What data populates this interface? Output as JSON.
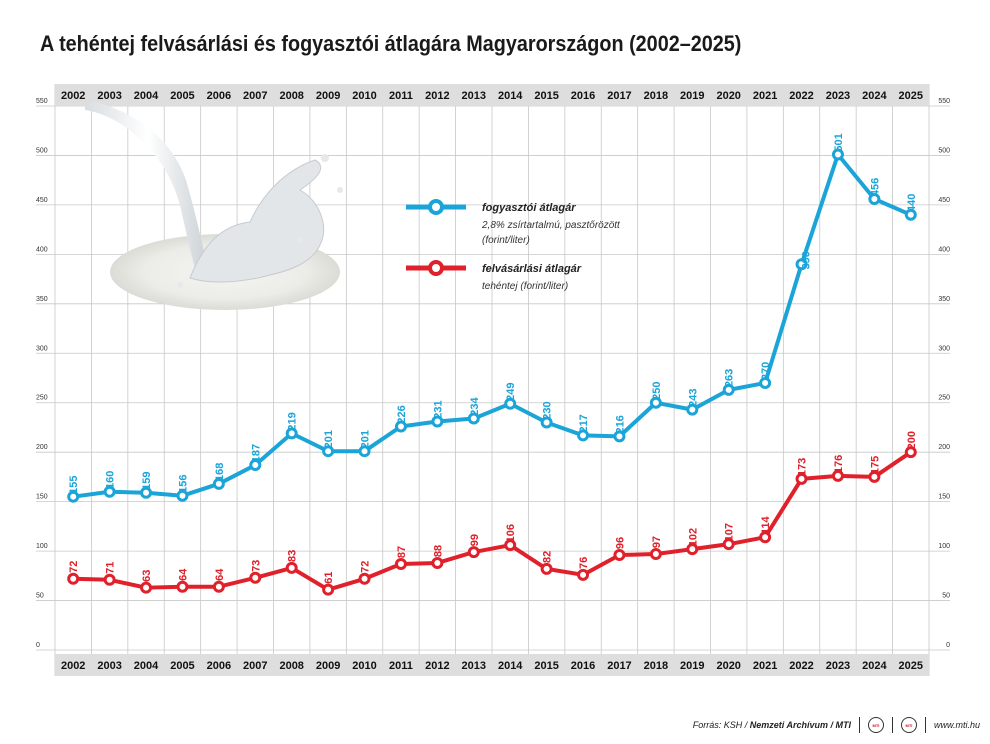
{
  "title": "A tehéntej felvásárlási és fogyasztói átlagára Magyarországon (2002–2025)",
  "chart_data": {
    "type": "line",
    "title": "A tehéntej felvásárlási és fogyasztói átlagára Magyarországon (2002–2025)",
    "x": [
      "2002",
      "2003",
      "2004",
      "2005",
      "2006",
      "2007",
      "2008",
      "2009",
      "2010",
      "2011",
      "2012",
      "2013",
      "2014",
      "2015",
      "2016",
      "2017",
      "2018",
      "2019",
      "2020",
      "2021",
      "2022",
      "2023",
      "2024",
      "2025"
    ],
    "y_ticks": [
      0,
      50,
      100,
      150,
      200,
      250,
      300,
      350,
      400,
      450,
      500,
      550
    ],
    "ylim": [
      0,
      550
    ],
    "grid": true,
    "legend_position": "top-center",
    "series": [
      {
        "name": "fogyasztói átlagár",
        "description": "2,8% zsírtartalmú, pasztőrözött (forint/liter)",
        "color": "#1ba4d8",
        "values": [
          155,
          160,
          159,
          156,
          168,
          187,
          219,
          201,
          201,
          226,
          231,
          234,
          249,
          230,
          217,
          216,
          250,
          243,
          263,
          270,
          390,
          501,
          456,
          440
        ]
      },
      {
        "name": "felvásárlási átlagár",
        "description": "tehéntej (forint/liter)",
        "color": "#e0202a",
        "values": [
          72,
          71,
          63,
          64,
          64,
          73,
          83,
          61,
          72,
          87,
          88,
          99,
          106,
          82,
          76,
          96,
          97,
          102,
          107,
          114,
          173,
          176,
          175,
          200
        ]
      }
    ]
  },
  "footer": {
    "source_prefix": "Forrás: KSH /",
    "source_bold": "Nemzeti Archívum / MTI",
    "logo_text": "MTI",
    "website": "www.mti.hu"
  }
}
